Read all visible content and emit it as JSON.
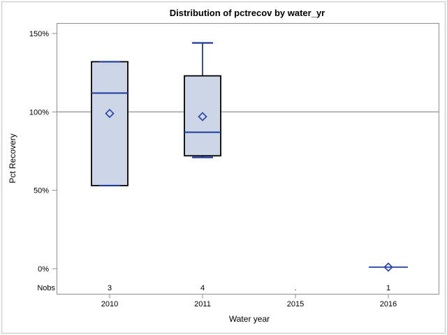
{
  "figure": {
    "background": "#ffffff",
    "outer_border_color": "#d2d2d2"
  },
  "chart_data": {
    "type": "boxplot",
    "title": "Distribution of pctrecov by water_yr",
    "xlabel": "Water year",
    "ylabel": "Pct Recovery",
    "categories": [
      "2010",
      "2011",
      "2015",
      "2016"
    ],
    "nobs_label": "Nobs",
    "nobs": [
      "3",
      "4",
      ".",
      "1"
    ],
    "y_ticks": [
      0,
      50,
      100,
      150
    ],
    "y_tick_labels": [
      "0%",
      "50%",
      "100%",
      "150%"
    ],
    "ylim": [
      -16,
      157
    ],
    "grid": "off",
    "legend": "none",
    "reference_line": 100,
    "boxes": [
      {
        "category": "2010",
        "n": 3,
        "whisker_low": 53,
        "q1": 53,
        "median": 112,
        "q3": 132,
        "whisker_high": 132,
        "mean": 99
      },
      {
        "category": "2011",
        "n": 4,
        "whisker_low": 71,
        "q1": 72,
        "median": 87,
        "q3": 123,
        "whisker_high": 144,
        "mean": 97
      }
    ],
    "points": [
      {
        "category": "2016",
        "n": 1,
        "value": 1
      }
    ],
    "colors": {
      "box_fill": "#ccd6e6",
      "box_border": "#000000",
      "whisker": "#1b3a9e",
      "median": "#1b3a9e",
      "mean_marker": "#2746ad",
      "reference_line": "#a6a6a6",
      "plot_border": "#8f8f8f",
      "tick": "#8c8c8c",
      "text": "#000000"
    }
  }
}
